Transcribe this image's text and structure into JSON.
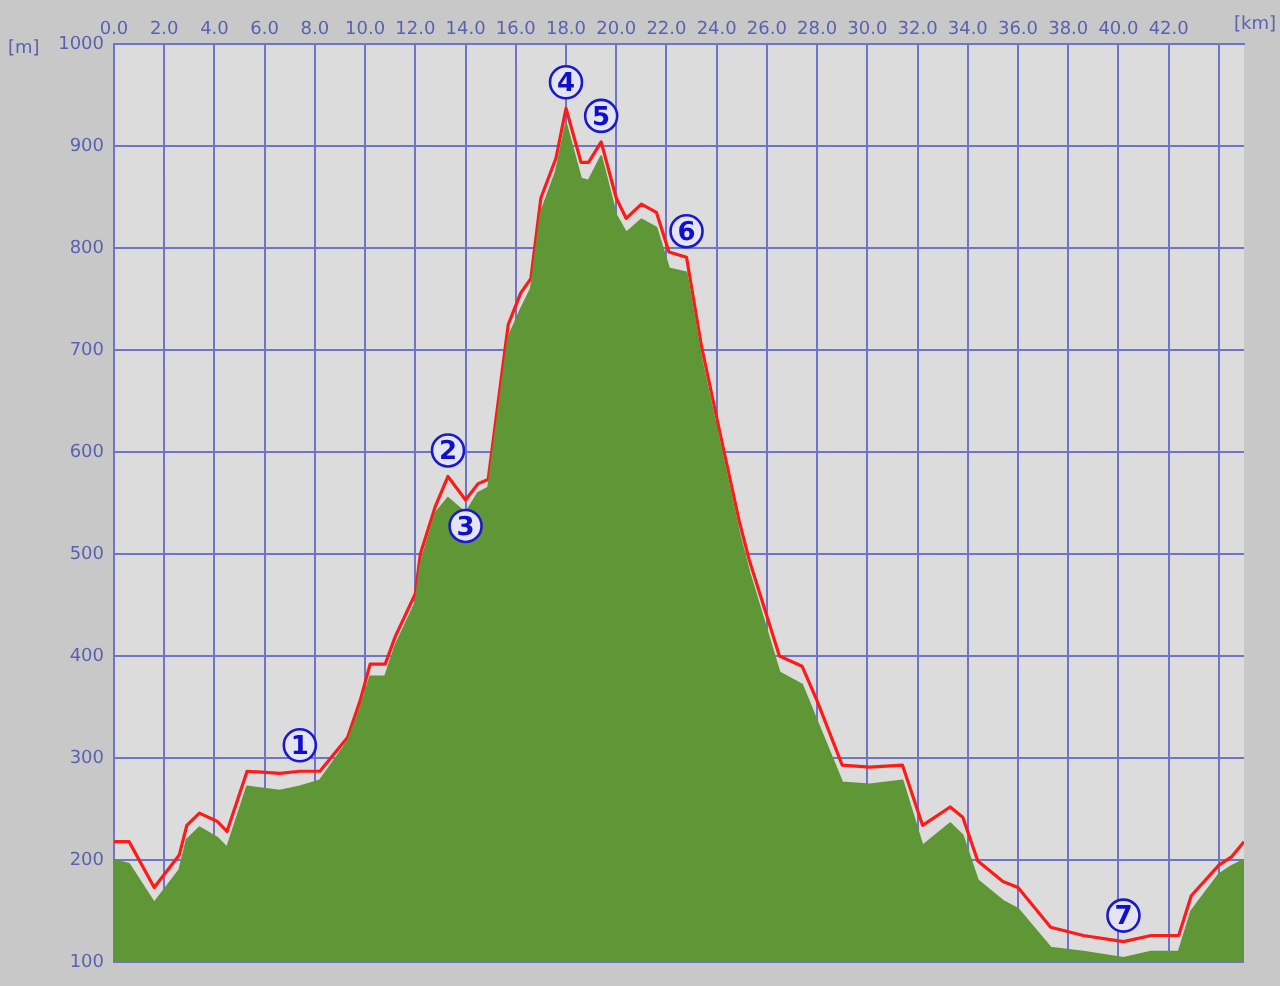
{
  "chart_data": {
    "type": "area",
    "xlabel": "[km]",
    "ylabel": "[m]",
    "x": [
      0,
      0.6,
      1.6,
      2.6,
      2.9,
      3.4,
      4.1,
      4.5,
      5.3,
      6.6,
      7.4,
      8.2,
      9.3,
      9.8,
      10.2,
      10.8,
      11.2,
      12.0,
      12.2,
      12.8,
      13.3,
      14.0,
      14.5,
      14.9,
      15.7,
      16.2,
      16.6,
      17.0,
      17.6,
      18.0,
      18.6,
      18.9,
      19.4,
      20.0,
      20.4,
      21.0,
      21.6,
      22.1,
      22.8,
      23.4,
      24.2,
      24.9,
      25.3,
      26.5,
      27.4,
      28.0,
      29.0,
      30.1,
      31.4,
      32.2,
      33.3,
      33.8,
      34.4,
      35.4,
      36.0,
      37.3,
      38.6,
      40.2,
      41.3,
      42.4,
      42.9,
      44.0,
      44.5,
      45.0
    ],
    "series": [
      {
        "type": "area",
        "color": "#5f9636",
        "values": [
          200,
          196,
          158,
          190,
          220,
          232,
          222,
          212,
          272,
          268,
          272,
          278,
          316,
          348,
          380,
          380,
          410,
          452,
          490,
          540,
          555,
          540,
          560,
          565,
          712,
          740,
          760,
          835,
          875,
          922,
          868,
          866,
          890,
          832,
          815,
          828,
          820,
          780,
          776,
          690,
          600,
          520,
          482,
          384,
          372,
          336,
          276,
          274,
          278,
          214,
          236,
          224,
          180,
          160,
          152,
          114,
          110,
          104,
          110,
          110,
          150,
          186,
          194,
          200
        ]
      },
      {
        "type": "line",
        "color": "#ff1a1a",
        "values": [
          218,
          218,
          173,
          205,
          234,
          246,
          238,
          228,
          287,
          285,
          287,
          287,
          320,
          356,
          392,
          392,
          419,
          461,
          500,
          547,
          576,
          553,
          569,
          573,
          725,
          756,
          770,
          849,
          888,
          937,
          884,
          884,
          904,
          849,
          829,
          843,
          835,
          796,
          791,
          703,
          611,
          532,
          494,
          400,
          390,
          356,
          293,
          291,
          293,
          234,
          252,
          242,
          199,
          179,
          173,
          134,
          126,
          120,
          126,
          126,
          165,
          195,
          203,
          218
        ]
      }
    ],
    "xlim": [
      0,
      45
    ],
    "ylim": [
      100,
      1000
    ],
    "xticks": [
      {
        "value": 0,
        "label": "0.0"
      },
      {
        "value": 2,
        "label": "2.0"
      },
      {
        "value": 4,
        "label": "4.0"
      },
      {
        "value": 6,
        "label": "6.0"
      },
      {
        "value": 8,
        "label": "8.0"
      },
      {
        "value": 10,
        "label": "10.0"
      },
      {
        "value": 12,
        "label": "12.0"
      },
      {
        "value": 14,
        "label": "14.0"
      },
      {
        "value": 16,
        "label": "16.0"
      },
      {
        "value": 18,
        "label": "18.0"
      },
      {
        "value": 20,
        "label": "20.0"
      },
      {
        "value": 22,
        "label": "22.0"
      },
      {
        "value": 24,
        "label": "24.0"
      },
      {
        "value": 26,
        "label": "26.0"
      },
      {
        "value": 28,
        "label": "28.0"
      },
      {
        "value": 30,
        "label": "30.0"
      },
      {
        "value": 32,
        "label": "32.0"
      },
      {
        "value": 34,
        "label": "34.0"
      },
      {
        "value": 36,
        "label": "36.0"
      },
      {
        "value": 38,
        "label": "38.0"
      },
      {
        "value": 40,
        "label": "40.0"
      },
      {
        "value": 42,
        "label": "42.0"
      },
      {
        "value": 44,
        "label": null
      }
    ],
    "yticks": [
      100,
      200,
      300,
      400,
      500,
      600,
      700,
      800,
      900,
      1000
    ],
    "grid": true,
    "legend": false,
    "annotations": [
      {
        "text": "1",
        "x": 7.4,
        "y": 287
      },
      {
        "text": "2",
        "x": 13.3,
        "y": 576
      },
      {
        "text": "3",
        "x": 14.0,
        "y": 553
      },
      {
        "text": "4",
        "x": 18.0,
        "y": 937
      },
      {
        "text": "5",
        "x": 19.4,
        "y": 904
      },
      {
        "text": "6",
        "x": 22.8,
        "y": 791
      },
      {
        "text": "7",
        "x": 40.2,
        "y": 120
      }
    ]
  }
}
